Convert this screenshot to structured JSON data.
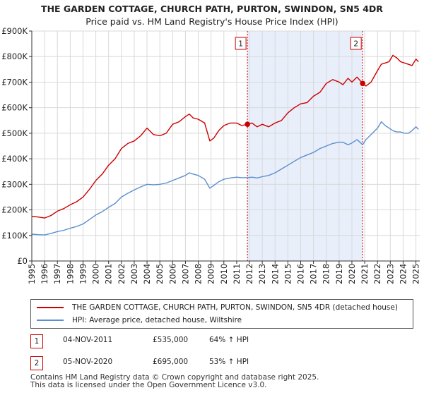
{
  "chart_data": {
    "type": "line",
    "title": "THE GARDEN COTTAGE, CHURCH PATH, PURTON, SWINDON, SN5 4DR",
    "subtitle": "Price paid vs. HM Land Registry's House Price Index (HPI)",
    "xlim": [
      1995,
      2025.3
    ],
    "ylim": [
      0,
      900000
    ],
    "x_ticks": [
      1995,
      1996,
      1997,
      1998,
      1999,
      2000,
      2001,
      2002,
      2003,
      2004,
      2005,
      2006,
      2007,
      2008,
      2009,
      2010,
      2011,
      2012,
      2013,
      2014,
      2015,
      2016,
      2017,
      2018,
      2019,
      2020,
      2021,
      2022,
      2023,
      2024,
      2025
    ],
    "y_ticks": [
      {
        "value": 0,
        "label": "£0"
      },
      {
        "value": 100000,
        "label": "£100K"
      },
      {
        "value": 200000,
        "label": "£200K"
      },
      {
        "value": 300000,
        "label": "£300K"
      },
      {
        "value": 400000,
        "label": "£400K"
      },
      {
        "value": 500000,
        "label": "£500K"
      },
      {
        "value": 600000,
        "label": "£600K"
      },
      {
        "value": 700000,
        "label": "£700K"
      },
      {
        "value": 800000,
        "label": "£800K"
      },
      {
        "value": 900000,
        "label": "£900K"
      }
    ],
    "shaded_region": {
      "from": 2011.84,
      "to": 2020.84
    },
    "series": [
      {
        "name": "THE GARDEN COTTAGE, CHURCH PATH, PURTON, SWINDON, SN5 4DR (detached house)",
        "color": "#cc0000",
        "x": [
          1995,
          1995.5,
          1996,
          1996.5,
          1997,
          1997.5,
          1998,
          1998.5,
          1999,
          1999.5,
          2000,
          2000.5,
          2001,
          2001.5,
          2002,
          2002.5,
          2003,
          2003.5,
          2004,
          2004.5,
          2005,
          2005.5,
          2006,
          2006.5,
          2007,
          2007.3,
          2007.6,
          2008,
          2008.5,
          2008.9,
          2009.2,
          2009.6,
          2010,
          2010.5,
          2011,
          2011.4,
          2011.84,
          2012.2,
          2012.6,
          2013,
          2013.5,
          2014,
          2014.5,
          2015,
          2015.5,
          2016,
          2016.5,
          2017,
          2017.5,
          2018,
          2018.5,
          2019,
          2019.3,
          2019.7,
          2020,
          2020.4,
          2020.84,
          2021.1,
          2021.5,
          2022,
          2022.3,
          2022.6,
          2022.9,
          2023.2,
          2023.5,
          2023.8,
          2024.1,
          2024.4,
          2024.7,
          2025,
          2025.2
        ],
        "y": [
          175000,
          172000,
          168000,
          178000,
          195000,
          205000,
          220000,
          232000,
          250000,
          280000,
          315000,
          340000,
          375000,
          400000,
          440000,
          460000,
          470000,
          490000,
          520000,
          495000,
          490000,
          500000,
          535000,
          545000,
          565000,
          575000,
          560000,
          555000,
          540000,
          470000,
          480000,
          510000,
          530000,
          540000,
          540000,
          530000,
          535000,
          540000,
          525000,
          535000,
          525000,
          540000,
          550000,
          580000,
          600000,
          615000,
          620000,
          645000,
          660000,
          695000,
          710000,
          700000,
          690000,
          715000,
          700000,
          720000,
          695000,
          685000,
          700000,
          745000,
          770000,
          775000,
          780000,
          805000,
          795000,
          780000,
          775000,
          770000,
          765000,
          790000,
          780000
        ]
      },
      {
        "name": "HPI: Average price, detached house, Wiltshire",
        "color": "#5b8fcf",
        "x": [
          1995,
          1995.5,
          1996,
          1996.5,
          1997,
          1997.5,
          1998,
          1998.5,
          1999,
          1999.5,
          2000,
          2000.5,
          2001,
          2001.5,
          2002,
          2002.5,
          2003,
          2003.5,
          2004,
          2004.5,
          2005,
          2005.5,
          2006,
          2006.5,
          2007,
          2007.3,
          2007.6,
          2008,
          2008.5,
          2008.9,
          2009.2,
          2009.6,
          2010,
          2010.5,
          2011,
          2011.4,
          2011.84,
          2012.2,
          2012.6,
          2013,
          2013.5,
          2014,
          2014.5,
          2015,
          2015.5,
          2016,
          2016.5,
          2017,
          2017.5,
          2018,
          2018.5,
          2019,
          2019.3,
          2019.7,
          2020,
          2020.4,
          2020.84,
          2021.1,
          2021.5,
          2022,
          2022.3,
          2022.6,
          2022.9,
          2023.2,
          2023.5,
          2023.8,
          2024.1,
          2024.4,
          2024.7,
          2025,
          2025.2
        ],
        "y": [
          105000,
          103000,
          102000,
          108000,
          115000,
          120000,
          128000,
          135000,
          145000,
          162000,
          180000,
          193000,
          210000,
          225000,
          250000,
          265000,
          278000,
          290000,
          300000,
          298000,
          300000,
          305000,
          315000,
          325000,
          335000,
          345000,
          340000,
          335000,
          320000,
          285000,
          295000,
          310000,
          320000,
          325000,
          328000,
          326000,
          326000,
          328000,
          325000,
          330000,
          335000,
          345000,
          360000,
          375000,
          390000,
          405000,
          415000,
          425000,
          440000,
          450000,
          460000,
          465000,
          465000,
          455000,
          462000,
          475000,
          455000,
          475000,
          495000,
          520000,
          545000,
          530000,
          520000,
          510000,
          505000,
          505000,
          500000,
          500000,
          510000,
          525000,
          515000
        ]
      }
    ],
    "markers": [
      {
        "label": "1",
        "x": 2011.84,
        "y": 535000
      },
      {
        "label": "2",
        "x": 2020.84,
        "y": 695000
      }
    ]
  },
  "legend": {
    "property_label": "THE GARDEN COTTAGE, CHURCH PATH, PURTON, SWINDON, SN5 4DR (detached house)",
    "hpi_label": "HPI: Average price, detached house, Wiltshire"
  },
  "transactions": [
    {
      "label": "1",
      "date": "04-NOV-2011",
      "price": "£535,000",
      "change": "64% ↑ HPI"
    },
    {
      "label": "2",
      "date": "05-NOV-2020",
      "price": "£695,000",
      "change": "53% ↑ HPI"
    }
  ],
  "footer": {
    "line1": "Contains HM Land Registry data © Crown copyright and database right 2025.",
    "line2": "This data is licensed under the Open Government Licence v3.0."
  },
  "colors": {
    "property": "#cc0000",
    "hpi": "#5b8fcf",
    "shade": "#e8eefa",
    "grid": "#d9d9d9"
  }
}
